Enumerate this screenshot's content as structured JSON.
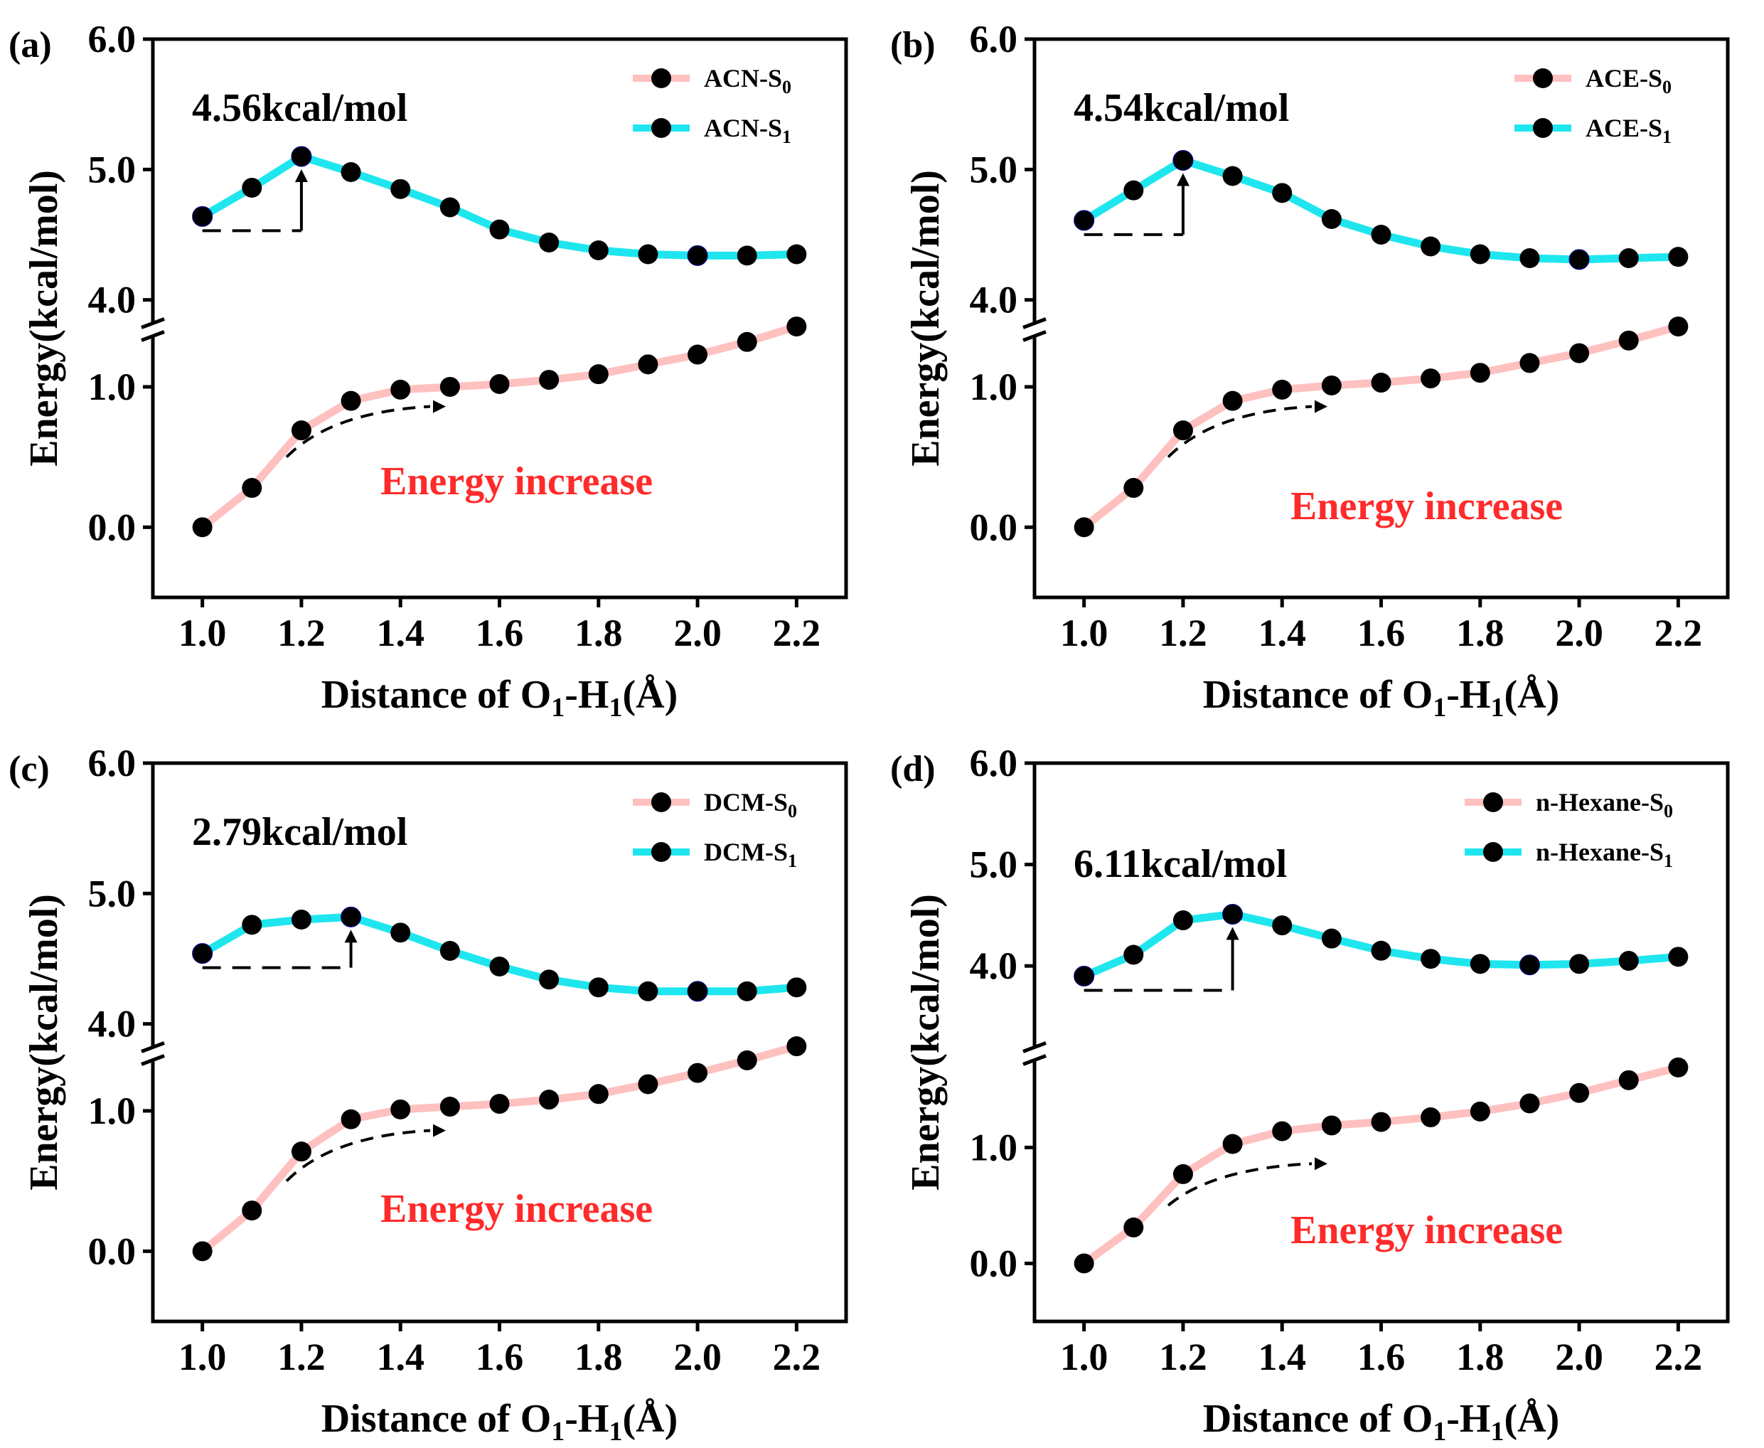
{
  "colors": {
    "s0_line": "#ffc0c0",
    "s1_line": "#1fe6ee",
    "s1_marker_fill": "#0a10e0",
    "annotation": "#ff2a2a",
    "axis": "#000000"
  },
  "chart_data": [
    {
      "type": "line",
      "panel_label": "(a)",
      "barrier_label": "4.56kcal/mol",
      "annotation": "Energy increase",
      "xlabel": {
        "main": "Distance of O",
        "sub1": "1",
        "mid": "-H",
        "sub2": "1",
        "tail": "(Å)"
      },
      "ylabel": "Energy(kcal/mol)",
      "xlim": [
        0.9,
        2.3
      ],
      "ylim_lower": [
        -0.5,
        1.4
      ],
      "ylim_upper": [
        3.9,
        6.0
      ],
      "xticks": [
        "1.0",
        "1.2",
        "1.4",
        "1.6",
        "1.8",
        "2.0",
        "2.2"
      ],
      "yticks_lower": [
        "0.0",
        "1.0"
      ],
      "yticks_upper": [
        "4.0",
        "5.0",
        "6.0"
      ],
      "series": [
        {
          "name": "ACN-S0",
          "legend_base": "ACN-S",
          "legend_sub": "0",
          "x": [
            1.0,
            1.1,
            1.2,
            1.3,
            1.4,
            1.5,
            1.6,
            1.7,
            1.8,
            1.9,
            2.0,
            2.1,
            2.2
          ],
          "values": [
            0.0,
            0.28,
            0.69,
            0.9,
            0.98,
            1.0,
            1.02,
            1.05,
            1.09,
            1.16,
            1.23,
            1.32,
            1.43
          ]
        },
        {
          "name": "ACN-S1",
          "legend_base": "ACN-S",
          "legend_sub": "1",
          "x": [
            1.0,
            1.1,
            1.2,
            1.3,
            1.4,
            1.5,
            1.6,
            1.7,
            1.8,
            1.9,
            2.0,
            2.1,
            2.2
          ],
          "values": [
            4.64,
            4.86,
            5.1,
            4.98,
            4.85,
            4.71,
            4.54,
            4.44,
            4.38,
            4.35,
            4.34,
            4.34,
            4.35
          ],
          "highlight_x": [
            1.0,
            1.2,
            2.0
          ]
        }
      ]
    },
    {
      "type": "line",
      "panel_label": "(b)",
      "barrier_label": "4.54kcal/mol",
      "annotation": "Energy increase",
      "xlabel": {
        "main": "Distance of O",
        "sub1": "1",
        "mid": "-H",
        "sub2": "1",
        "tail": "(Å)"
      },
      "ylabel": "Energy(kcal/mol)",
      "xlim": [
        0.9,
        2.3
      ],
      "ylim_lower": [
        -0.5,
        1.4
      ],
      "ylim_upper": [
        3.9,
        6.0
      ],
      "xticks": [
        "1.0",
        "1.2",
        "1.4",
        "1.6",
        "1.8",
        "2.0",
        "2.2"
      ],
      "yticks_lower": [
        "0.0",
        "1.0"
      ],
      "yticks_upper": [
        "4.0",
        "5.0",
        "6.0"
      ],
      "series": [
        {
          "name": "ACE-S0",
          "legend_base": "ACE-S",
          "legend_sub": "0",
          "x": [
            1.0,
            1.1,
            1.2,
            1.3,
            1.4,
            1.5,
            1.6,
            1.7,
            1.8,
            1.9,
            2.0,
            2.1,
            2.2
          ],
          "values": [
            0.0,
            0.28,
            0.69,
            0.9,
            0.98,
            1.01,
            1.03,
            1.06,
            1.1,
            1.17,
            1.24,
            1.33,
            1.43
          ]
        },
        {
          "name": "ACE-S1",
          "legend_base": "ACE-S",
          "legend_sub": "1",
          "x": [
            1.0,
            1.1,
            1.2,
            1.3,
            1.4,
            1.5,
            1.6,
            1.7,
            1.8,
            1.9,
            2.0,
            2.1,
            2.2
          ],
          "values": [
            4.61,
            4.84,
            5.07,
            4.95,
            4.82,
            4.62,
            4.5,
            4.41,
            4.35,
            4.32,
            4.31,
            4.32,
            4.33
          ],
          "highlight_x": [
            1.0,
            1.2,
            2.0
          ]
        }
      ]
    },
    {
      "type": "line",
      "panel_label": "(c)",
      "barrier_label": "2.79kcal/mol",
      "annotation": "Energy increase",
      "xlabel": {
        "main": "Distance of O",
        "sub1": "1",
        "mid": "-H",
        "sub2": "1",
        "tail": "(Å)"
      },
      "ylabel": "Energy(kcal/mol)",
      "xlim": [
        0.9,
        2.3
      ],
      "ylim_lower": [
        -0.5,
        1.4
      ],
      "ylim_upper": [
        3.9,
        6.0
      ],
      "xticks": [
        "1.0",
        "1.2",
        "1.4",
        "1.6",
        "1.8",
        "2.0",
        "2.2"
      ],
      "yticks_lower": [
        "0.0",
        "1.0"
      ],
      "yticks_upper": [
        "4.0",
        "5.0",
        "6.0"
      ],
      "series": [
        {
          "name": "DCM-S0",
          "legend_base": "DCM-S",
          "legend_sub": "0",
          "x": [
            1.0,
            1.1,
            1.2,
            1.3,
            1.4,
            1.5,
            1.6,
            1.7,
            1.8,
            1.9,
            2.0,
            2.1,
            2.2
          ],
          "values": [
            0.0,
            0.29,
            0.71,
            0.94,
            1.01,
            1.03,
            1.05,
            1.08,
            1.12,
            1.19,
            1.27,
            1.36,
            1.46
          ]
        },
        {
          "name": "DCM-S1",
          "legend_base": "DCM-S",
          "legend_sub": "1",
          "x": [
            1.0,
            1.1,
            1.2,
            1.3,
            1.4,
            1.5,
            1.6,
            1.7,
            1.8,
            1.9,
            2.0,
            2.1,
            2.2
          ],
          "values": [
            4.54,
            4.76,
            4.8,
            4.82,
            4.7,
            4.56,
            4.44,
            4.34,
            4.28,
            4.25,
            4.25,
            4.25,
            4.28
          ],
          "highlight_x": [
            1.0,
            1.3,
            2.0
          ]
        }
      ]
    },
    {
      "type": "line",
      "panel_label": "(d)",
      "barrier_label": "6.11kcal/mol",
      "annotation": "Energy increase",
      "xlabel": {
        "main": "Distance of O",
        "sub1": "1",
        "mid": "-H",
        "sub2": "1",
        "tail": "(Å)"
      },
      "ylabel": "Energy(kcal/mol)",
      "xlim": [
        0.9,
        2.3
      ],
      "ylim_lower": [
        -0.5,
        1.8
      ],
      "ylim_upper": [
        3.3,
        6.0
      ],
      "xticks": [
        "1.0",
        "1.2",
        "1.4",
        "1.6",
        "1.8",
        "2.0",
        "2.2"
      ],
      "yticks_lower": [
        "0.0",
        "1.0"
      ],
      "yticks_upper": [
        "4.0",
        "5.0",
        "6.0"
      ],
      "series": [
        {
          "name": "n-Hexane-S0",
          "legend_base": "n-Hexane-S",
          "legend_sub": "0",
          "x": [
            1.0,
            1.1,
            1.2,
            1.3,
            1.4,
            1.5,
            1.6,
            1.7,
            1.8,
            1.9,
            2.0,
            2.1,
            2.2
          ],
          "values": [
            0.0,
            0.31,
            0.77,
            1.03,
            1.14,
            1.19,
            1.22,
            1.26,
            1.31,
            1.38,
            1.47,
            1.58,
            1.69
          ]
        },
        {
          "name": "n-Hexane-S1",
          "legend_base": "n-Hexane-S",
          "legend_sub": "1",
          "x": [
            1.0,
            1.1,
            1.2,
            1.3,
            1.4,
            1.5,
            1.6,
            1.7,
            1.8,
            1.9,
            2.0,
            2.1,
            2.2
          ],
          "values": [
            3.9,
            4.11,
            4.45,
            4.51,
            4.4,
            4.27,
            4.15,
            4.07,
            4.02,
            4.01,
            4.02,
            4.05,
            4.09
          ],
          "highlight_x": [
            1.0,
            1.3,
            1.9
          ]
        }
      ]
    }
  ]
}
